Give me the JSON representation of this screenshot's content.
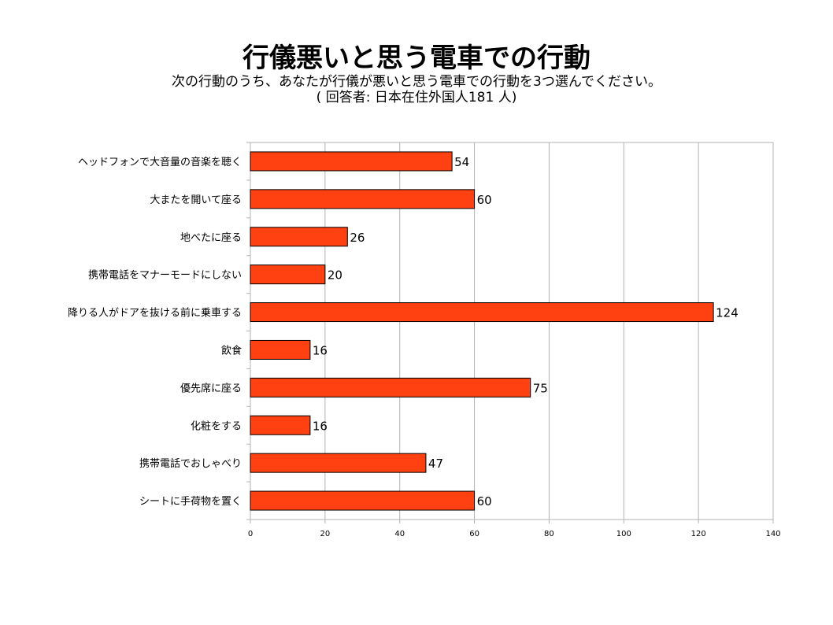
{
  "title": "行儀悪いと思う電車での行動",
  "subtitle": "次の行動のうち、あなたが行儀が悪いと思う電車での行動を3つ選んでください。",
  "subtitle2": "( 回答者: 日本在住外国人181 人)",
  "colors": {
    "bar": "#ff4010",
    "bar_border": "#000000",
    "grid": "#b3b3b3"
  },
  "chart_data": {
    "type": "bar",
    "orientation": "horizontal",
    "title": "行儀悪いと思う電車での行動",
    "subtitle": "次の行動のうち、あなたが行儀が悪いと思う電車での行動を3つ選んでください。",
    "categories": [
      "ヘッドフォンで大音量の音楽を聴く",
      "大またを開いて座る",
      "地べたに座る",
      "携帯電話をマナーモードにしない",
      "降りる人がドアを抜ける前に乗車する",
      "飲食",
      "優先席に座る",
      "化粧をする",
      "携帯電話でおしゃべり",
      "シートに手荷物を置く"
    ],
    "values": [
      54,
      60,
      26,
      20,
      124,
      16,
      75,
      16,
      47,
      60
    ],
    "xlim": [
      0,
      140
    ],
    "xticks": [
      0,
      20,
      40,
      60,
      80,
      100,
      120,
      140
    ],
    "grid": true,
    "data_labels": true,
    "legend": false
  }
}
